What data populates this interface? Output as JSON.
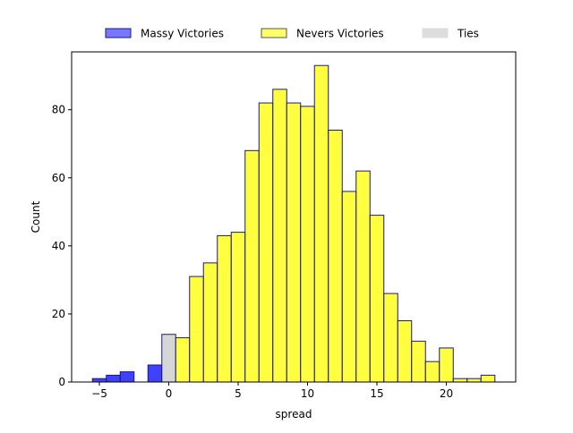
{
  "chart_data": {
    "type": "bar",
    "subtype": "histogram",
    "xlabel": "spread",
    "ylabel": "Count",
    "xlim": [
      -7,
      25
    ],
    "ylim": [
      0,
      97
    ],
    "x_ticks": [
      -5,
      0,
      5,
      10,
      15,
      20
    ],
    "y_ticks": [
      0,
      20,
      40,
      60,
      80
    ],
    "bin_width": 1,
    "grid": false,
    "legend": {
      "placement": "top-outside",
      "entries": [
        {
          "name": "Massy Victories",
          "color": "#7777ff",
          "edge": "#1a1a80"
        },
        {
          "name": "Nevers Victories",
          "color": "#ffff66",
          "edge": "#555555"
        },
        {
          "name": "Ties",
          "color": "#dddddd",
          "edge": "#dddddd"
        }
      ]
    },
    "series": [
      {
        "name": "Massy Victories",
        "color": "#0000ff",
        "edge": "#1a1a80",
        "bins": [
          {
            "x0": -5.5,
            "x1": -4.5,
            "count": 1
          },
          {
            "x0": -4.5,
            "x1": -3.5,
            "count": 2
          },
          {
            "x0": -3.5,
            "x1": -2.5,
            "count": 3
          },
          {
            "x0": -1.5,
            "x1": -0.5,
            "count": 5
          }
        ]
      },
      {
        "name": "Ties",
        "color": "#c8c8c8",
        "edge": "#1a1a80",
        "bins": [
          {
            "x0": -0.5,
            "x1": 0.5,
            "count": 14
          }
        ]
      },
      {
        "name": "Nevers Victories",
        "color": "#ffff00",
        "edge": "#1a1a80",
        "bins": [
          {
            "x0": 0.5,
            "x1": 1.5,
            "count": 13
          },
          {
            "x0": 1.5,
            "x1": 2.5,
            "count": 31
          },
          {
            "x0": 2.5,
            "x1": 3.5,
            "count": 35
          },
          {
            "x0": 3.5,
            "x1": 4.5,
            "count": 43
          },
          {
            "x0": 4.5,
            "x1": 5.5,
            "count": 44
          },
          {
            "x0": 5.5,
            "x1": 6.5,
            "count": 68
          },
          {
            "x0": 6.5,
            "x1": 7.5,
            "count": 82
          },
          {
            "x0": 7.5,
            "x1": 8.5,
            "count": 86
          },
          {
            "x0": 8.5,
            "x1": 9.5,
            "count": 82
          },
          {
            "x0": 9.5,
            "x1": 10.5,
            "count": 81
          },
          {
            "x0": 10.5,
            "x1": 11.5,
            "count": 93
          },
          {
            "x0": 11.5,
            "x1": 12.5,
            "count": 74
          },
          {
            "x0": 12.5,
            "x1": 13.5,
            "count": 56
          },
          {
            "x0": 13.5,
            "x1": 14.5,
            "count": 62
          },
          {
            "x0": 14.5,
            "x1": 15.5,
            "count": 49
          },
          {
            "x0": 15.5,
            "x1": 16.5,
            "count": 26
          },
          {
            "x0": 16.5,
            "x1": 17.5,
            "count": 18
          },
          {
            "x0": 17.5,
            "x1": 18.5,
            "count": 12
          },
          {
            "x0": 18.5,
            "x1": 19.5,
            "count": 6
          },
          {
            "x0": 19.5,
            "x1": 20.5,
            "count": 10
          },
          {
            "x0": 20.5,
            "x1": 21.5,
            "count": 1
          },
          {
            "x0": 21.5,
            "x1": 22.5,
            "count": 1
          },
          {
            "x0": 22.5,
            "x1": 23.5,
            "count": 2
          }
        ]
      }
    ]
  }
}
